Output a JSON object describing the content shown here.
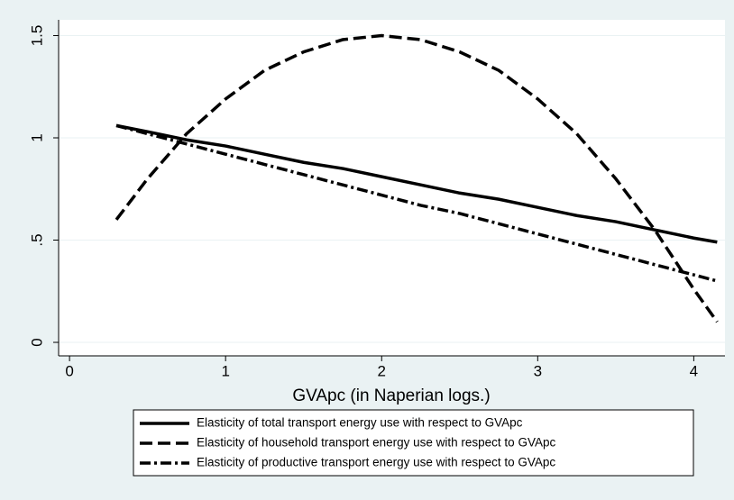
{
  "chart_data": {
    "type": "line",
    "x_label": "GVApc (in Naperian logs.)",
    "x": [
      0.3,
      0.5,
      0.75,
      1,
      1.25,
      1.5,
      1.75,
      2,
      2.25,
      2.5,
      2.75,
      3,
      3.25,
      3.5,
      3.75,
      4,
      4.15
    ],
    "series": [
      {
        "name": "Elasticity of total transport energy use with respect to GVApc",
        "color": "#000000",
        "style": "solid",
        "values": [
          1.06,
          1.03,
          0.99,
          0.96,
          0.92,
          0.88,
          0.85,
          0.81,
          0.77,
          0.73,
          0.7,
          0.66,
          0.62,
          0.59,
          0.55,
          0.51,
          0.49
        ]
      },
      {
        "name": "Elasticity of household transport energy use with respect to GVApc",
        "color": "#000000",
        "style": "dash",
        "values": [
          0.6,
          0.8,
          1.02,
          1.19,
          1.33,
          1.42,
          1.48,
          1.5,
          1.48,
          1.42,
          1.33,
          1.19,
          1.02,
          0.8,
          0.55,
          0.26,
          0.1
        ]
      },
      {
        "name": "Elasticity of productive transport energy use with respect to GVApc",
        "color": "#000000",
        "style": "dash-dot",
        "values": [
          1.06,
          1.02,
          0.97,
          0.92,
          0.87,
          0.82,
          0.77,
          0.72,
          0.67,
          0.63,
          0.58,
          0.53,
          0.48,
          0.43,
          0.38,
          0.33,
          0.3
        ]
      }
    ],
    "xlim": [
      -0.07,
      4.2
    ],
    "xticks": [
      0,
      1,
      2,
      3,
      4
    ],
    "ylim": [
      -0.066,
      1.577
    ],
    "yticks": [
      0,
      {
        "value": 0.5,
        "label": ".5"
      },
      1,
      1.5
    ],
    "grid": true,
    "legend": "bottom"
  }
}
